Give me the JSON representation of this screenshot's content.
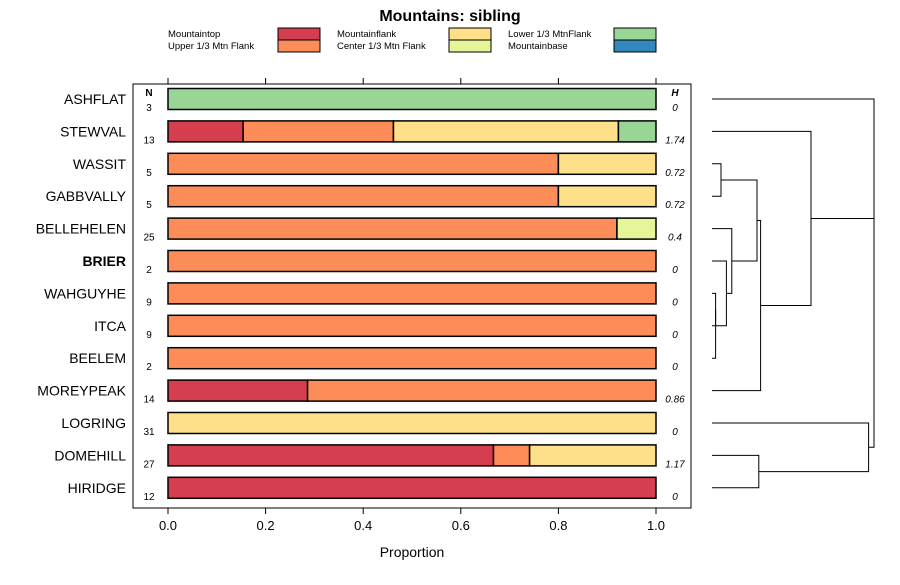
{
  "chart_data": {
    "type": "bar",
    "orientation": "horizontal",
    "stacked": true,
    "title": "Mountains: sibling",
    "xlabel": "Proportion",
    "xlim": [
      0,
      1
    ],
    "xticks": [
      "0.0",
      "0.2",
      "0.4",
      "0.6",
      "0.8",
      "1.0"
    ],
    "n_header": "N",
    "h_header": "H",
    "legend": [
      {
        "name": "Mountaintop",
        "color": "#d53e4f"
      },
      {
        "name": "Upper 1/3 Mtn Flank",
        "color": "#fc8d59"
      },
      {
        "name": "Mountainflank",
        "color": "#fee08b"
      },
      {
        "name": "Center 1/3 Mtn Flank",
        "color": "#e6f598"
      },
      {
        "name": "Lower 1/3 MtnFlank",
        "color": "#99d594"
      },
      {
        "name": "Mountainbase",
        "color": "#3288bd"
      }
    ],
    "rows": [
      {
        "label": "ASHFLAT",
        "bold": false,
        "n": "3",
        "h": "0",
        "segments": [
          [
            "Lower 1/3 MtnFlank",
            1.0
          ]
        ]
      },
      {
        "label": "STEWVAL",
        "bold": false,
        "n": "13",
        "h": "1.74",
        "segments": [
          [
            "Mountaintop",
            0.154
          ],
          [
            "Upper 1/3 Mtn Flank",
            0.308
          ],
          [
            "Mountainflank",
            0.461
          ],
          [
            "Lower 1/3 MtnFlank",
            0.077
          ]
        ]
      },
      {
        "label": "WASSIT",
        "bold": false,
        "n": "5",
        "h": "0.72",
        "segments": [
          [
            "Upper 1/3 Mtn Flank",
            0.8
          ],
          [
            "Mountainflank",
            0.2
          ]
        ]
      },
      {
        "label": "GABBVALLY",
        "bold": false,
        "n": "5",
        "h": "0.72",
        "segments": [
          [
            "Upper 1/3 Mtn Flank",
            0.8
          ],
          [
            "Mountainflank",
            0.2
          ]
        ]
      },
      {
        "label": "BELLEHELEN",
        "bold": false,
        "n": "25",
        "h": "0.4",
        "segments": [
          [
            "Upper 1/3 Mtn Flank",
            0.92
          ],
          [
            "Center 1/3 Mtn Flank",
            0.08
          ]
        ]
      },
      {
        "label": "BRIER",
        "bold": true,
        "n": "2",
        "h": "0",
        "segments": [
          [
            "Upper 1/3 Mtn Flank",
            1.0
          ]
        ]
      },
      {
        "label": "WAHGUYHE",
        "bold": false,
        "n": "9",
        "h": "0",
        "segments": [
          [
            "Upper 1/3 Mtn Flank",
            1.0
          ]
        ]
      },
      {
        "label": "ITCA",
        "bold": false,
        "n": "9",
        "h": "0",
        "segments": [
          [
            "Upper 1/3 Mtn Flank",
            1.0
          ]
        ]
      },
      {
        "label": "BEELEM",
        "bold": false,
        "n": "2",
        "h": "0",
        "segments": [
          [
            "Upper 1/3 Mtn Flank",
            1.0
          ]
        ]
      },
      {
        "label": "MOREYPEAK",
        "bold": false,
        "n": "14",
        "h": "0.86",
        "segments": [
          [
            "Mountaintop",
            0.286
          ],
          [
            "Upper 1/3 Mtn Flank",
            0.714
          ]
        ]
      },
      {
        "label": "LOGRING",
        "bold": false,
        "n": "31",
        "h": "0",
        "segments": [
          [
            "Mountainflank",
            1.0
          ]
        ]
      },
      {
        "label": "DOMEHILL",
        "bold": false,
        "n": "27",
        "h": "1.17",
        "segments": [
          [
            "Mountaintop",
            0.667
          ],
          [
            "Upper 1/3 Mtn Flank",
            0.074
          ],
          [
            "Mountainflank",
            0.259
          ]
        ]
      },
      {
        "label": "HIRIDGE",
        "bold": false,
        "n": "12",
        "h": "0",
        "segments": [
          [
            "Mountaintop",
            1.0
          ]
        ]
      }
    ],
    "dendrogram": {
      "merge_heights": {
        "wassit_gabbvally": 0.05,
        "wahguyhe_itca_beelem": 0.02,
        "brier_group": 0.08,
        "bellehelen_group": 0.11,
        "ws_gb_belle_group": 0.25,
        "stewval_join": 0.55,
        "moreypeak_join": 0.27,
        "domehill_hiridge": 0.26,
        "logring_join": 0.87,
        "root": 0.9
      }
    }
  }
}
